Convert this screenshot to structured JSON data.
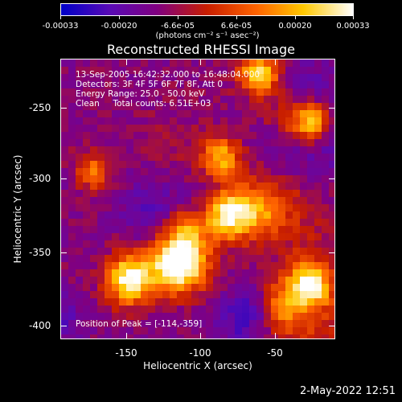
{
  "colorbar": {
    "tick_labels": [
      "-0.00033",
      "-0.00020",
      "-6.6e-05",
      "6.6e-05",
      "0.00020",
      "0.00033"
    ],
    "units": "(photons cm⁻² s⁻¹ asec⁻²)",
    "colors": [
      "#0000c8",
      "#5a0ab4",
      "#800080",
      "#c81e00",
      "#ff6400",
      "#ffc800",
      "#ffffff"
    ]
  },
  "title": "Reconstructed RHESSI Image",
  "info": {
    "time": "13-Sep-2005 16:42:32.000 to 16:48:04.000",
    "detectors": "Detectors: 3F 4F 5F 6F 7F 8F, Att 0",
    "energy": "Energy Range: 25.0 - 50.0 keV",
    "clean": "Clean     Total counts: 6.51E+03",
    "peak": "Position of Peak = [-114,-359]"
  },
  "axes": {
    "xlabel": "Heliocentric X (arcsec)",
    "ylabel": "Heliocentric Y (arcsec)",
    "xticks": [
      "-150",
      "-100",
      "-50"
    ],
    "yticks": [
      "-250",
      "-300",
      "-350",
      "-400"
    ],
    "xrange": [
      -197,
      -12
    ],
    "yrange": [
      -410,
      -228
    ]
  },
  "footer": {
    "date": "2-May-2022 12:51"
  }
}
